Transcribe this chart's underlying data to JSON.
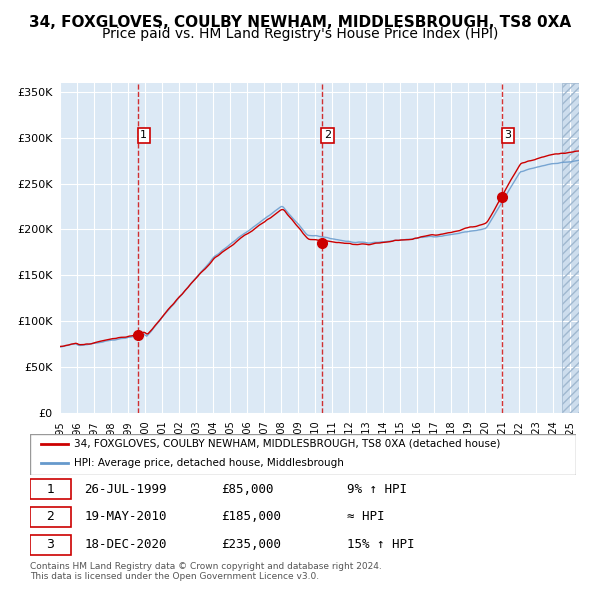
{
  "title": "34, FOXGLOVES, COULBY NEWHAM, MIDDLESBROUGH, TS8 0XA",
  "subtitle": "Price paid vs. HM Land Registry's House Price Index (HPI)",
  "xlabel": "",
  "ylabel": "",
  "ylim": [
    0,
    360000
  ],
  "yticks": [
    0,
    50000,
    100000,
    150000,
    200000,
    250000,
    300000,
    350000
  ],
  "ytick_labels": [
    "£0",
    "£50K",
    "£100K",
    "£150K",
    "£200K",
    "£250K",
    "£300K",
    "£350K"
  ],
  "xstart": 1995.0,
  "xend": 2025.5,
  "bg_color": "#dce9f5",
  "plot_bg": "#dce9f5",
  "hatch_color": "#c0d0e8",
  "grid_color": "#ffffff",
  "red_line_color": "#cc0000",
  "blue_line_color": "#6699cc",
  "sale_marker_color": "#cc0000",
  "dashed_line_color": "#cc0000",
  "sale1_date": 1999.57,
  "sale1_price": 85000,
  "sale2_date": 2010.38,
  "sale2_price": 185000,
  "sale3_date": 2020.96,
  "sale3_price": 235000,
  "legend_line1": "34, FOXGLOVES, COULBY NEWHAM, MIDDLESBROUGH, TS8 0XA (detached house)",
  "legend_line2": "HPI: Average price, detached house, Middlesbrough",
  "table_row1": [
    "1",
    "26-JUL-1999",
    "£85,000",
    "9% ↑ HPI"
  ],
  "table_row2": [
    "2",
    "19-MAY-2010",
    "£185,000",
    "≈ HPI"
  ],
  "table_row3": [
    "3",
    "18-DEC-2020",
    "£235,000",
    "15% ↑ HPI"
  ],
  "footer": "Contains HM Land Registry data © Crown copyright and database right 2024.\nThis data is licensed under the Open Government Licence v3.0.",
  "title_fontsize": 11,
  "subtitle_fontsize": 10
}
